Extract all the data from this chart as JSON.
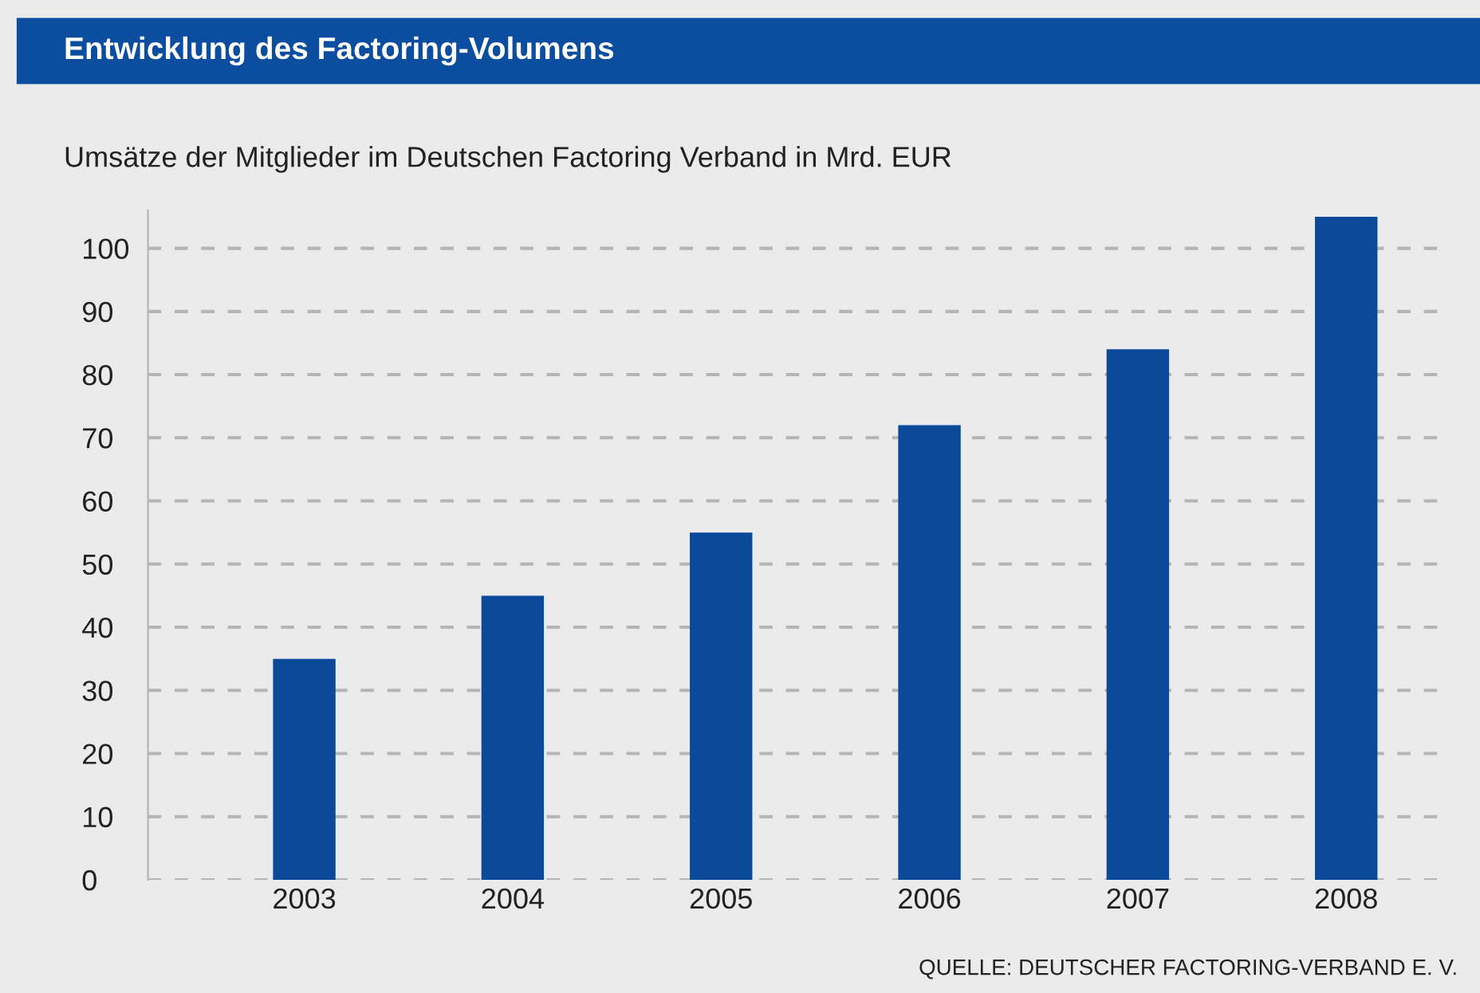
{
  "chart_data": {
    "type": "bar",
    "title": "Entwicklung des Factoring-Volumens",
    "subtitle": "Umsätze der Mitglieder im Deutschen Factoring Verband in Mrd. EUR",
    "categories": [
      "2003",
      "2004",
      "2005",
      "2006",
      "2007",
      "2008"
    ],
    "values": [
      35,
      45,
      55,
      72,
      84,
      105
    ],
    "color": "#0b4a9b",
    "ylim": [
      0,
      106
    ],
    "yticks": [
      0,
      10,
      20,
      30,
      40,
      50,
      60,
      70,
      80,
      90,
      100
    ],
    "grid": "y",
    "annotations": [
      "QUELLE: DEUTSCHER FACTORING-VERBAND E. V."
    ]
  }
}
